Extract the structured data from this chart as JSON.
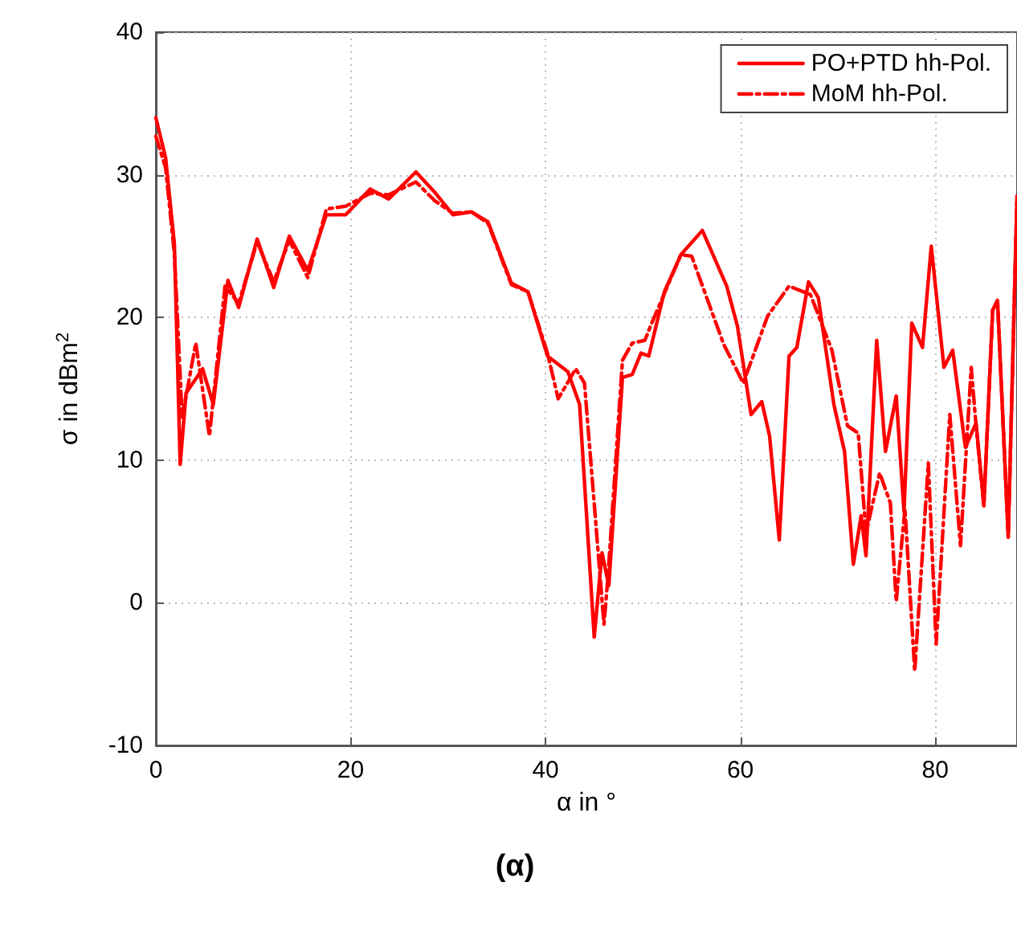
{
  "chart_data": {
    "type": "line",
    "xlabel": "α in °",
    "ylabel": "σ in dBm$^{2}$",
    "annotations": [
      "(α)"
    ],
    "xlim": [
      0,
      88.4
    ],
    "xticks": [
      0,
      20,
      40,
      60,
      80
    ],
    "ylim": [
      -10,
      40
    ],
    "yticks": [
      -10,
      0,
      10,
      20,
      30,
      40
    ],
    "grid": true,
    "legend": "top right",
    "series": [
      {
        "name": "PO+PTD hh-Pol.",
        "color": "#ff0000",
        "line_style": "solid",
        "x": [
          0,
          1.0,
          1.9,
          2.5,
          3.1,
          4.8,
          5.9,
          7.4,
          8.5,
          10.4,
          12.1,
          13.7,
          15.6,
          17.5,
          19.5,
          22,
          23.9,
          26.7,
          28.6,
          30.5,
          32.4,
          34.1,
          36.5,
          38.2,
          40.2,
          42.3,
          43.5,
          45,
          45.8,
          46.5,
          47.9,
          48.9,
          49.8,
          50.6,
          52.2,
          53.9,
          56.1,
          58.6,
          59.7,
          61.1,
          62.2,
          63,
          64,
          65,
          65.8,
          67,
          68,
          69.6,
          70.7,
          71.6,
          72.4,
          72.9,
          74,
          74.9,
          76,
          76.8,
          77.6,
          78.7,
          79.6,
          80.9,
          81.8,
          83.1,
          84.2,
          85,
          85.9,
          86.4,
          87.5,
          88.4
        ],
        "values": [
          34.0,
          31.2,
          25.2,
          9.7,
          14.7,
          16.4,
          13.9,
          22.6,
          20.7,
          25.5,
          22.1,
          25.7,
          23.3,
          27.2,
          27.2,
          29,
          28.3,
          30.2,
          28.8,
          27.2,
          27.4,
          26.7,
          22.4,
          21.8,
          17.3,
          16.2,
          13.9,
          -2.4,
          3.5,
          1.2,
          15.8,
          16,
          17.5,
          17.3,
          21.8,
          24.4,
          26.1,
          22.2,
          19.4,
          13.2,
          14.1,
          11.7,
          4.4,
          17.3,
          17.9,
          22.5,
          21.4,
          13.9,
          10.6,
          2.7,
          6.1,
          3.3,
          18.4,
          10.6,
          14.5,
          6.4,
          19.6,
          17.9,
          25,
          16.5,
          17.7,
          10.9,
          12.6,
          6.8,
          20.5,
          21.2,
          4.6,
          28.5
        ]
      },
      {
        "name": "MoM hh-Pol.",
        "color": "#ff0000",
        "line_style": "dashed",
        "x": [
          0,
          1.0,
          1.9,
          2.7,
          4.1,
          5.5,
          7.1,
          8.5,
          10.4,
          12.1,
          13.7,
          15.6,
          17.5,
          19.5,
          22,
          23.9,
          26.7,
          28.6,
          30.5,
          32.4,
          34.1,
          36.5,
          38.2,
          40.2,
          41.3,
          43.1,
          44,
          46,
          46.4,
          47.9,
          48.9,
          50.2,
          50.9,
          53.9,
          55,
          58.3,
          60.3,
          62.8,
          65,
          67.2,
          69.4,
          71,
          72.1,
          72.9,
          74.3,
          75.4,
          76,
          76.9,
          77.9,
          79.3,
          80.1,
          81.5,
          82.6,
          83.7,
          84.2,
          85,
          85.9,
          86.4,
          87.5,
          88.4
        ],
        "values": [
          32.7,
          30.5,
          24.5,
          13,
          18.2,
          11.7,
          22.2,
          21,
          25.3,
          22.5,
          25.4,
          22.8,
          27.6,
          27.8,
          28.7,
          28.6,
          29.5,
          28.2,
          27.3,
          27.4,
          26.6,
          22.3,
          21.8,
          17.5,
          14.3,
          16.4,
          15.4,
          -1.5,
          1.7,
          17,
          18.2,
          18.4,
          19.6,
          24.4,
          24.3,
          18.1,
          15.4,
          20.1,
          22.2,
          21.6,
          17.7,
          12.4,
          11.9,
          4.9,
          9.1,
          7,
          0.1,
          6.6,
          -4.8,
          9.8,
          -2.9,
          13.2,
          4.0,
          16.5,
          12.4,
          6.8,
          20.5,
          21.2,
          4.6,
          28.5
        ]
      }
    ]
  }
}
